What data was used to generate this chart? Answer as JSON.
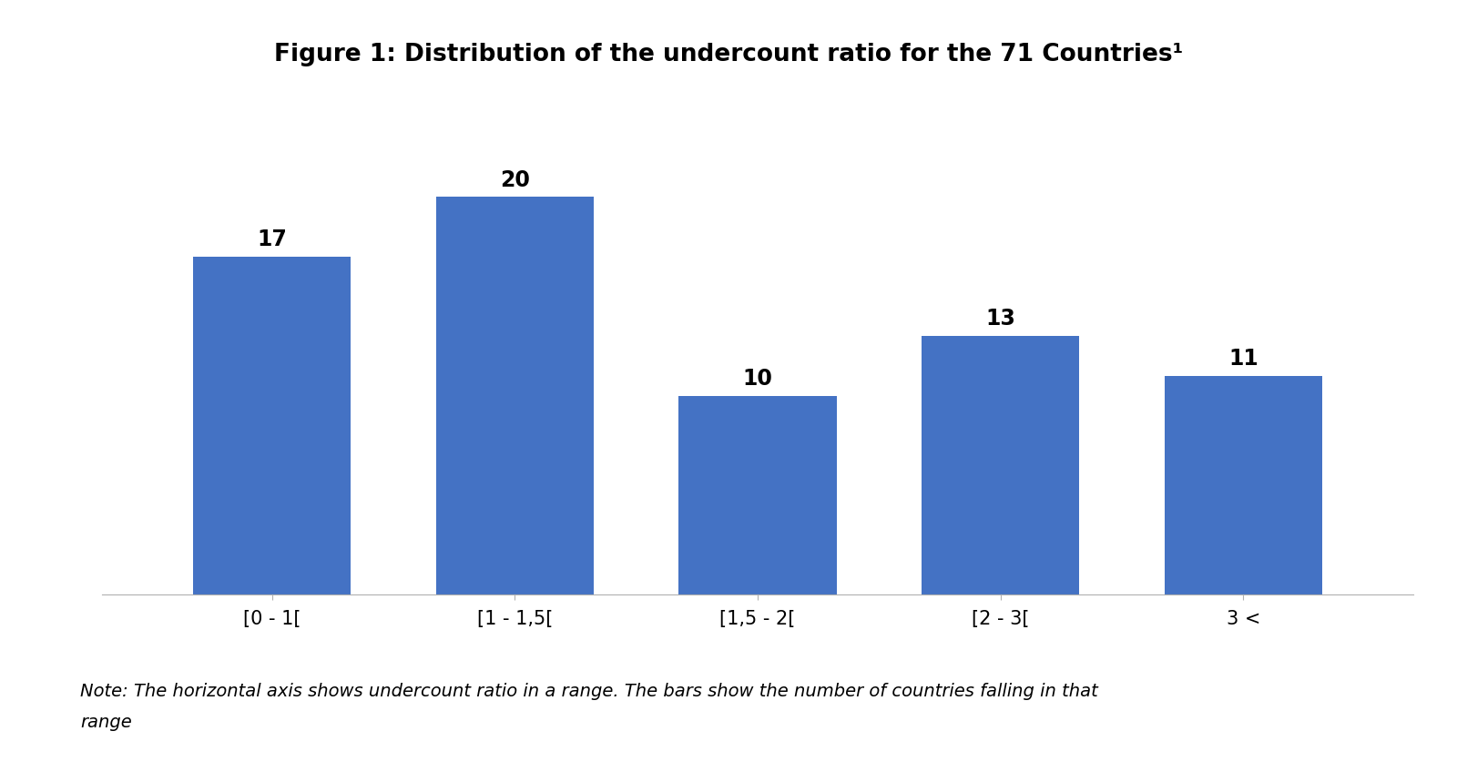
{
  "title": "Figure 1: Distribution of the undercount ratio for the 71 Countries¹",
  "categories": [
    "[0 - 1[",
    "[1 - 1,5[",
    "[1,5 - 2[",
    "[2 - 3[",
    "3 <"
  ],
  "values": [
    17,
    20,
    10,
    13,
    11
  ],
  "bar_color": "#4472C4",
  "bar_width": 0.65,
  "value_labels": [
    "17",
    "20",
    "10",
    "13",
    "11"
  ],
  "note_line1": "Note: The horizontal axis shows undercount ratio in a range. The bars show the number of countries falling in that",
  "note_line2": "range",
  "ylim": [
    0,
    24
  ],
  "background_color": "#ffffff",
  "title_fontsize": 19,
  "tick_fontsize": 15,
  "note_fontsize": 14,
  "bar_label_fontsize": 17,
  "title_fontweight": "bold"
}
